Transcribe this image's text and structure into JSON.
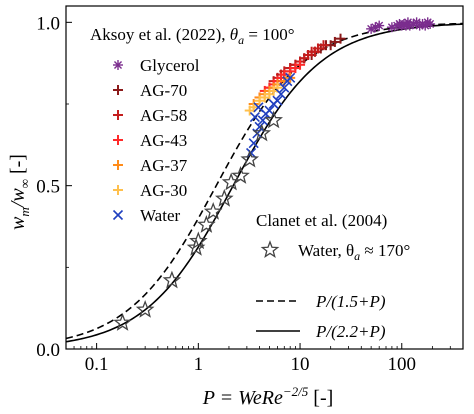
{
  "chart_data": {
    "type": "scatter",
    "x_scale": "log",
    "xlim": [
      0.05,
      400
    ],
    "ylim": [
      0.0,
      1.05
    ],
    "x_ticks": [
      {
        "value": 0.1,
        "label": "0.1"
      },
      {
        "value": 1,
        "label": "1"
      },
      {
        "value": 10,
        "label": "10"
      },
      {
        "value": 100,
        "label": "100"
      }
    ],
    "y_ticks": [
      {
        "value": 0.0,
        "label": "0.0"
      },
      {
        "value": 0.5,
        "label": "0.5"
      },
      {
        "value": 1.0,
        "label": "1.0"
      }
    ],
    "xlabel": {
      "text": "P = WeRe",
      "sup": "−2/5",
      "unit": " [-]"
    },
    "ylabel": {
      "text": "w",
      "sub_m": "m",
      "slash": "/w",
      "sub_inf": "∞",
      "unit": " [-]"
    },
    "legend_groups": [
      {
        "title": "Aksoy et al. (2022), ",
        "title_math": "θ",
        "title_sub": "a",
        "title_tail": " = 100°",
        "entries": [
          "Glycerol",
          "AG-70",
          "AG-58",
          "AG-43",
          "AG-37",
          "AG-30",
          "Water"
        ]
      },
      {
        "title": "Clanet et al. (2004)",
        "entries": [
          "Water, θ",
          "a",
          " ≈ 170°"
        ]
      }
    ],
    "line_legend": [
      {
        "label": "P/(1.5+P)",
        "style": "dashed"
      },
      {
        "label": "P/(2.2+P)",
        "style": "solid"
      }
    ],
    "lines": [
      {
        "name": "P/(1.5+P)",
        "c": 1.5,
        "style": "dashed"
      },
      {
        "name": "P/(2.2+P)",
        "c": 2.2,
        "style": "solid"
      }
    ],
    "series": [
      {
        "name": "Glycerol",
        "marker": "asterisk",
        "color": "#7b2d8e",
        "x": [
          50,
          55,
          60,
          80,
          90,
          95,
          100,
          105,
          110,
          115,
          120,
          130,
          140,
          150,
          160,
          170,
          180,
          190
        ],
        "y": [
          0.98,
          0.985,
          0.99,
          0.985,
          0.99,
          0.995,
          0.99,
          0.995,
          0.99,
          1.0,
          0.99,
          0.995,
          1.0,
          0.99,
          0.995,
          0.99,
          1.0,
          0.995
        ]
      },
      {
        "name": "AG-70",
        "marker": "plus",
        "color": "#8b1a1a",
        "x": [
          6,
          7,
          8,
          9,
          10,
          11,
          12,
          13,
          14,
          16,
          18,
          20,
          22,
          25
        ],
        "y": [
          0.82,
          0.84,
          0.86,
          0.87,
          0.88,
          0.89,
          0.9,
          0.9,
          0.91,
          0.92,
          0.93,
          0.93,
          0.94,
          0.95
        ]
      },
      {
        "name": "AG-58",
        "marker": "plus",
        "color": "#c41e1e",
        "x": [
          5,
          5.5,
          6,
          6.5,
          7,
          8,
          9,
          10,
          11,
          12,
          13,
          14,
          15,
          17
        ],
        "y": [
          0.8,
          0.82,
          0.83,
          0.84,
          0.85,
          0.86,
          0.87,
          0.88,
          0.89,
          0.9,
          0.91,
          0.91,
          0.92,
          0.93
        ]
      },
      {
        "name": "AG-43",
        "marker": "plus",
        "color": "#ff2a2a",
        "x": [
          4,
          4.5,
          5,
          5.5,
          6,
          6.5,
          7,
          8,
          9,
          10
        ],
        "y": [
          0.77,
          0.79,
          0.8,
          0.81,
          0.82,
          0.83,
          0.84,
          0.85,
          0.86,
          0.87
        ]
      },
      {
        "name": "AG-37",
        "marker": "plus",
        "color": "#ff8c1a",
        "x": [
          3.5,
          4,
          4.5,
          5,
          5.5,
          6,
          7,
          8
        ],
        "y": [
          0.75,
          0.77,
          0.78,
          0.79,
          0.8,
          0.81,
          0.82,
          0.83
        ]
      },
      {
        "name": "AG-30",
        "marker": "plus",
        "color": "#ffc04d",
        "x": [
          3.2,
          3.5,
          4,
          4.5,
          5,
          5.5,
          6
        ],
        "y": [
          0.73,
          0.74,
          0.76,
          0.77,
          0.78,
          0.79,
          0.8
        ]
      },
      {
        "name": "Water",
        "marker": "x",
        "color": "#1f3fbf",
        "x": [
          3.3,
          3.5,
          3.8,
          4.0,
          4.3,
          4.6,
          5.0,
          5.5,
          6.0,
          6.5,
          7.0,
          7.5,
          8.0,
          3.6,
          3.9
        ],
        "y": [
          0.6,
          0.63,
          0.66,
          0.68,
          0.7,
          0.72,
          0.73,
          0.75,
          0.76,
          0.78,
          0.8,
          0.82,
          0.83,
          0.71,
          0.74
        ]
      },
      {
        "name": "Water (Clanet et al.)",
        "marker": "star",
        "color": "#444444",
        "x": [
          0.18,
          0.3,
          0.55,
          0.95,
          1.0,
          1.2,
          1.4,
          1.8,
          2.1,
          2.6,
          3.2,
          4.2,
          5.5
        ],
        "y": [
          0.08,
          0.12,
          0.21,
          0.31,
          0.33,
          0.38,
          0.42,
          0.46,
          0.51,
          0.53,
          0.58,
          0.66,
          0.7
        ]
      }
    ]
  }
}
